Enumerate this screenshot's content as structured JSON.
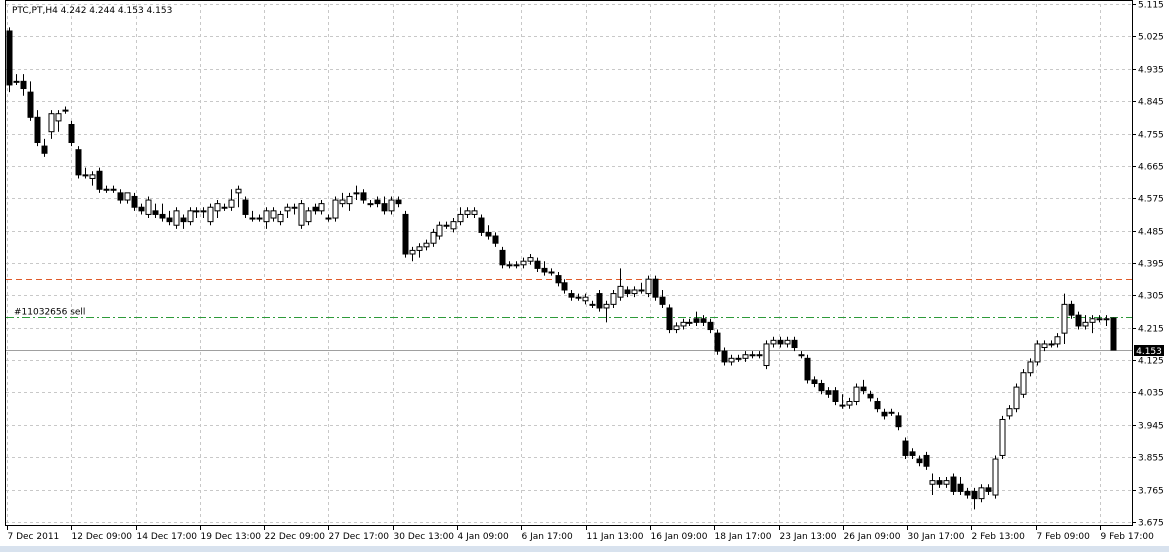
{
  "chart_data": {
    "type": "candlestick",
    "title": "PTC,PT,H4  4.242 4.244 4.153 4.153",
    "symbol": "PTC,PT",
    "timeframe": "H4",
    "last_bar": {
      "open": 4.242,
      "high": 4.244,
      "low": 4.153,
      "close": 4.153
    },
    "current_price_label": "4.153",
    "ylim": [
      3.675,
      5.115
    ],
    "y_ticks": [
      "5.115",
      "5.025",
      "4.935",
      "4.845",
      "4.755",
      "4.665",
      "4.575",
      "4.485",
      "4.395",
      "4.305",
      "4.215",
      "4.125",
      "4.035",
      "3.945",
      "3.855",
      "3.765",
      "3.675"
    ],
    "x_ticks": [
      "7 Dec 2011",
      "12 Dec 09:00",
      "14 Dec 17:00",
      "19 Dec 13:00",
      "22 Dec 09:00",
      "27 Dec 17:00",
      "30 Dec 13:00",
      "4 Jan 09:00",
      "6 Jan 17:00",
      "11 Jan 13:00",
      "16 Jan 09:00",
      "18 Jan 17:00",
      "23 Jan 13:00",
      "26 Jan 09:00",
      "30 Jan 17:00",
      "2 Feb 13:00",
      "7 Feb 09:00",
      "9 Feb 17:00"
    ],
    "levels": [
      {
        "price": 4.35,
        "color": "#e05a2a",
        "style": "dashed",
        "label": ""
      },
      {
        "price": 4.246,
        "color": "#2e9a3a",
        "style": "dashdot",
        "label": "#11032656 sell"
      }
    ],
    "grid": true,
    "colors": {
      "bull_body": "#ffffff",
      "bear_body": "#000000",
      "wick": "#000000",
      "grid": "#c8c8c8",
      "price_label_bg": "#000000",
      "price_label_fg": "#ffffff"
    },
    "candles": [
      [
        5.04,
        5.05,
        4.87,
        4.89
      ],
      [
        4.9,
        4.92,
        4.89,
        4.9
      ],
      [
        4.9,
        4.92,
        4.86,
        4.88
      ],
      [
        4.87,
        4.9,
        4.79,
        4.8
      ],
      [
        4.8,
        4.82,
        4.72,
        4.73
      ],
      [
        4.72,
        4.74,
        4.69,
        4.7
      ],
      [
        4.76,
        4.82,
        4.74,
        4.81
      ],
      [
        4.79,
        4.82,
        4.76,
        4.81
      ],
      [
        4.82,
        4.83,
        4.81,
        4.82
      ],
      [
        4.78,
        4.79,
        4.72,
        4.73
      ],
      [
        4.71,
        4.72,
        4.63,
        4.64
      ],
      [
        4.64,
        4.66,
        4.63,
        4.64
      ],
      [
        4.63,
        4.65,
        4.61,
        4.64
      ],
      [
        4.65,
        4.66,
        4.59,
        4.6
      ],
      [
        4.6,
        4.61,
        4.59,
        4.6
      ],
      [
        4.6,
        4.61,
        4.59,
        4.6
      ],
      [
        4.59,
        4.6,
        4.56,
        4.57
      ],
      [
        4.57,
        4.59,
        4.56,
        4.59
      ],
      [
        4.58,
        4.59,
        4.54,
        4.55
      ],
      [
        4.55,
        4.56,
        4.53,
        4.54
      ],
      [
        4.53,
        4.58,
        4.52,
        4.57
      ],
      [
        4.54,
        4.56,
        4.52,
        4.53
      ],
      [
        4.53,
        4.56,
        4.51,
        4.52
      ],
      [
        4.52,
        4.54,
        4.5,
        4.51
      ],
      [
        4.5,
        4.55,
        4.49,
        4.54
      ],
      [
        4.52,
        4.53,
        4.49,
        4.51
      ],
      [
        4.51,
        4.55,
        4.5,
        4.54
      ],
      [
        4.54,
        4.55,
        4.52,
        4.54
      ],
      [
        4.54,
        4.55,
        4.52,
        4.54
      ],
      [
        4.51,
        4.56,
        4.5,
        4.55
      ],
      [
        4.54,
        4.57,
        4.52,
        4.56
      ],
      [
        4.55,
        4.56,
        4.54,
        4.55
      ],
      [
        4.55,
        4.6,
        4.54,
        4.57
      ],
      [
        4.59,
        4.61,
        4.55,
        4.6
      ],
      [
        4.57,
        4.58,
        4.52,
        4.53
      ],
      [
        4.52,
        4.54,
        4.51,
        4.52
      ],
      [
        4.52,
        4.53,
        4.51,
        4.52
      ],
      [
        4.51,
        4.55,
        4.49,
        4.54
      ],
      [
        4.52,
        4.55,
        4.51,
        4.54
      ],
      [
        4.51,
        4.54,
        4.5,
        4.53
      ],
      [
        4.54,
        4.56,
        4.52,
        4.55
      ],
      [
        4.55,
        4.56,
        4.53,
        4.55
      ],
      [
        4.5,
        4.57,
        4.49,
        4.56
      ],
      [
        4.51,
        4.55,
        4.5,
        4.54
      ],
      [
        4.55,
        4.56,
        4.53,
        4.54
      ],
      [
        4.54,
        4.57,
        4.53,
        4.56
      ],
      [
        4.52,
        4.53,
        4.51,
        4.52
      ],
      [
        4.52,
        4.58,
        4.51,
        4.57
      ],
      [
        4.56,
        4.59,
        4.55,
        4.57
      ],
      [
        4.56,
        4.59,
        4.54,
        4.58
      ],
      [
        4.59,
        4.61,
        4.57,
        4.59
      ],
      [
        4.59,
        4.6,
        4.56,
        4.57
      ],
      [
        4.56,
        4.57,
        4.55,
        4.56
      ],
      [
        4.57,
        4.58,
        4.55,
        4.56
      ],
      [
        4.56,
        4.58,
        4.53,
        4.54
      ],
      [
        4.54,
        4.58,
        4.53,
        4.57
      ],
      [
        4.57,
        4.58,
        4.55,
        4.56
      ],
      [
        4.53,
        4.54,
        4.41,
        4.42
      ],
      [
        4.42,
        4.44,
        4.4,
        4.43
      ],
      [
        4.43,
        4.45,
        4.41,
        4.44
      ],
      [
        4.44,
        4.46,
        4.43,
        4.45
      ],
      [
        4.45,
        4.49,
        4.44,
        4.48
      ],
      [
        4.47,
        4.51,
        4.46,
        4.5
      ],
      [
        4.5,
        4.51,
        4.49,
        4.5
      ],
      [
        4.49,
        4.52,
        4.48,
        4.51
      ],
      [
        4.51,
        4.55,
        4.5,
        4.53
      ],
      [
        4.53,
        4.55,
        4.52,
        4.54
      ],
      [
        4.53,
        4.55,
        4.52,
        4.54
      ],
      [
        4.52,
        4.53,
        4.47,
        4.48
      ],
      [
        4.48,
        4.5,
        4.46,
        4.47
      ],
      [
        4.47,
        4.48,
        4.44,
        4.45
      ],
      [
        4.43,
        4.44,
        4.38,
        4.39
      ],
      [
        4.39,
        4.4,
        4.38,
        4.39
      ],
      [
        4.39,
        4.4,
        4.38,
        4.39
      ],
      [
        4.39,
        4.41,
        4.38,
        4.4
      ],
      [
        4.4,
        4.42,
        4.39,
        4.41
      ],
      [
        4.4,
        4.41,
        4.37,
        4.38
      ],
      [
        4.38,
        4.4,
        4.36,
        4.37
      ],
      [
        4.37,
        4.38,
        4.36,
        4.37
      ],
      [
        4.36,
        4.37,
        4.33,
        4.34
      ],
      [
        4.34,
        4.35,
        4.31,
        4.32
      ],
      [
        4.31,
        4.32,
        4.29,
        4.3
      ],
      [
        4.3,
        4.31,
        4.29,
        4.3
      ],
      [
        4.29,
        4.31,
        4.28,
        4.3
      ],
      [
        4.28,
        4.29,
        4.27,
        4.28
      ],
      [
        4.31,
        4.32,
        4.26,
        4.27
      ],
      [
        4.27,
        4.29,
        4.23,
        4.28
      ],
      [
        4.28,
        4.32,
        4.27,
        4.31
      ],
      [
        4.3,
        4.38,
        4.29,
        4.33
      ],
      [
        4.32,
        4.33,
        4.3,
        4.31
      ],
      [
        4.31,
        4.33,
        4.3,
        4.32
      ],
      [
        4.32,
        4.34,
        4.31,
        4.32
      ],
      [
        4.31,
        4.36,
        4.3,
        4.35
      ],
      [
        4.35,
        4.36,
        4.29,
        4.3
      ],
      [
        4.3,
        4.32,
        4.27,
        4.28
      ],
      [
        4.27,
        4.28,
        4.2,
        4.21
      ],
      [
        4.21,
        4.23,
        4.2,
        4.22
      ],
      [
        4.22,
        4.24,
        4.21,
        4.23
      ],
      [
        4.23,
        4.24,
        4.22,
        4.23
      ],
      [
        4.24,
        4.26,
        4.22,
        4.23
      ],
      [
        4.24,
        4.25,
        4.22,
        4.23
      ],
      [
        4.23,
        4.24,
        4.2,
        4.21
      ],
      [
        4.2,
        4.21,
        4.14,
        4.15
      ],
      [
        4.15,
        4.16,
        4.11,
        4.12
      ],
      [
        4.12,
        4.14,
        4.11,
        4.13
      ],
      [
        4.13,
        4.14,
        4.12,
        4.13
      ],
      [
        4.13,
        4.15,
        4.12,
        4.14
      ],
      [
        4.14,
        4.15,
        4.13,
        4.14
      ],
      [
        4.14,
        4.15,
        4.13,
        4.14
      ],
      [
        4.11,
        4.18,
        4.1,
        4.17
      ],
      [
        4.17,
        4.19,
        4.16,
        4.18
      ],
      [
        4.18,
        4.19,
        4.16,
        4.17
      ],
      [
        4.17,
        4.19,
        4.16,
        4.18
      ],
      [
        4.18,
        4.19,
        4.15,
        4.16
      ],
      [
        4.14,
        4.15,
        4.13,
        4.14
      ],
      [
        4.13,
        4.14,
        4.06,
        4.07
      ],
      [
        4.07,
        4.08,
        4.05,
        4.06
      ],
      [
        4.06,
        4.07,
        4.03,
        4.04
      ],
      [
        4.04,
        4.05,
        4.02,
        4.03
      ],
      [
        4.04,
        4.05,
        4.0,
        4.01
      ],
      [
        4.0,
        4.03,
        3.99,
        4.0
      ],
      [
        4.0,
        4.02,
        3.99,
        4.01
      ],
      [
        4.01,
        4.06,
        4.0,
        4.05
      ],
      [
        4.05,
        4.07,
        4.03,
        4.04
      ],
      [
        4.03,
        4.04,
        4.01,
        4.02
      ],
      [
        4.01,
        4.02,
        3.98,
        3.99
      ],
      [
        3.98,
        3.99,
        3.96,
        3.97
      ],
      [
        3.98,
        3.99,
        3.97,
        3.98
      ],
      [
        3.97,
        3.98,
        3.93,
        3.94
      ],
      [
        3.9,
        3.91,
        3.85,
        3.86
      ],
      [
        3.87,
        3.88,
        3.85,
        3.86
      ],
      [
        3.85,
        3.86,
        3.83,
        3.84
      ],
      [
        3.86,
        3.87,
        3.82,
        3.83
      ],
      [
        3.78,
        3.81,
        3.75,
        3.79
      ],
      [
        3.79,
        3.8,
        3.77,
        3.78
      ],
      [
        3.78,
        3.8,
        3.77,
        3.79
      ],
      [
        3.8,
        3.81,
        3.75,
        3.76
      ],
      [
        3.78,
        3.8,
        3.75,
        3.76
      ],
      [
        3.76,
        3.77,
        3.74,
        3.75
      ],
      [
        3.76,
        3.77,
        3.71,
        3.74
      ],
      [
        3.74,
        3.78,
        3.73,
        3.77
      ],
      [
        3.77,
        3.78,
        3.75,
        3.76
      ],
      [
        3.75,
        3.86,
        3.74,
        3.85
      ],
      [
        3.86,
        3.97,
        3.85,
        3.96
      ],
      [
        3.97,
        4.0,
        3.96,
        3.99
      ],
      [
        3.99,
        4.06,
        3.98,
        4.05
      ],
      [
        4.03,
        4.1,
        4.02,
        4.09
      ],
      [
        4.09,
        4.13,
        4.08,
        4.12
      ],
      [
        4.12,
        4.18,
        4.11,
        4.17
      ],
      [
        4.16,
        4.18,
        4.15,
        4.17
      ],
      [
        4.17,
        4.18,
        4.16,
        4.17
      ],
      [
        4.17,
        4.2,
        4.16,
        4.19
      ],
      [
        4.2,
        4.31,
        4.17,
        4.28
      ],
      [
        4.28,
        4.29,
        4.24,
        4.25
      ],
      [
        4.25,
        4.26,
        4.21,
        4.22
      ],
      [
        4.22,
        4.25,
        4.21,
        4.23
      ],
      [
        4.23,
        4.25,
        4.2,
        4.24
      ],
      [
        4.24,
        4.25,
        4.23,
        4.24
      ],
      [
        4.24,
        4.25,
        4.22,
        4.24
      ],
      [
        4.242,
        4.244,
        4.153,
        4.153
      ]
    ]
  }
}
